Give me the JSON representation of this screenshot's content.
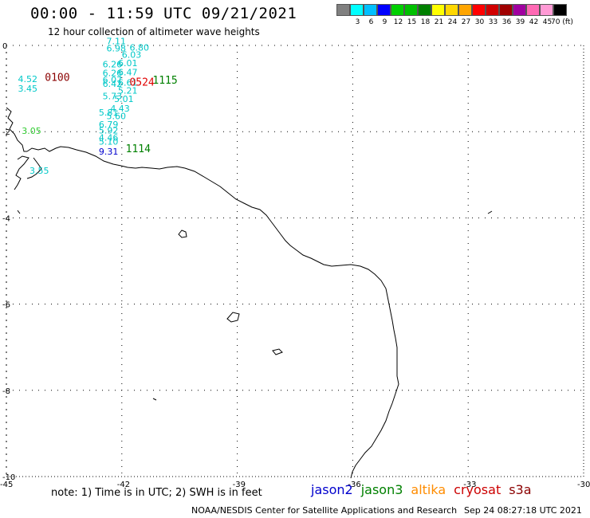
{
  "header": {
    "title": "00:00 - 11:59 UTC 09/21/2021",
    "subtitle": "12 hour collection of altimeter wave heights"
  },
  "colorbar": {
    "colors": [
      "#808080",
      "#00ffff",
      "#00bfff",
      "#0000ff",
      "#00d000",
      "#00c000",
      "#008000",
      "#ffff00",
      "#ffd700",
      "#ffa500",
      "#ff0000",
      "#d00000",
      "#a00000",
      "#a000a0",
      "#ff69b4",
      "#ff9ad5",
      "#000000"
    ],
    "labels": [
      "",
      "3",
      "6",
      "9",
      "12",
      "15",
      "18",
      "21",
      "24",
      "27",
      "30",
      "33",
      "36",
      "39",
      "42",
      "45",
      "70 (ft)"
    ]
  },
  "map": {
    "lon_ticks": [
      "-45",
      "-42",
      "-39",
      "-36",
      "-33",
      "-30"
    ],
    "lat_ticks": [
      "0",
      "-2",
      "-4",
      "-6",
      "-8",
      "-10"
    ],
    "lon_range": [
      -45,
      -30
    ],
    "lat_range": [
      -10,
      0
    ],
    "pass_times": [
      {
        "text": "0100",
        "color": "#8b0000",
        "lon": -44.0,
        "lat": -0.82
      },
      {
        "text": "0524",
        "color": "#e00000",
        "lon": -41.8,
        "lat": -0.93
      },
      {
        "text": "1115",
        "color": "#008000",
        "lon": -41.2,
        "lat": -0.89
      },
      {
        "text": "1114",
        "color": "#008000",
        "lon": -41.9,
        "lat": -2.48
      }
    ],
    "wave_heights": [
      {
        "text": "7.11",
        "color": "#00c8c8",
        "lon": -42.4,
        "lat": 0.03
      },
      {
        "text": "6.98",
        "color": "#00c8c8",
        "lon": -42.4,
        "lat": -0.14
      },
      {
        "text": "6.80",
        "color": "#00c8c8",
        "lon": -41.8,
        "lat": -0.12
      },
      {
        "text": "6.03",
        "color": "#00c8c8",
        "lon": -42.0,
        "lat": -0.29
      },
      {
        "text": "6.26",
        "color": "#00c8c8",
        "lon": -42.5,
        "lat": -0.51
      },
      {
        "text": "6.01",
        "color": "#00c8c8",
        "lon": -42.1,
        "lat": -0.48
      },
      {
        "text": "6.26",
        "color": "#00c8c8",
        "lon": -42.5,
        "lat": -0.71
      },
      {
        "text": "6.47",
        "color": "#00c8c8",
        "lon": -42.1,
        "lat": -0.69
      },
      {
        "text": "6.07",
        "color": "#00c8c8",
        "lon": -42.5,
        "lat": -0.87
      },
      {
        "text": "6.42",
        "color": "#00c8c8",
        "lon": -42.5,
        "lat": -0.96
      },
      {
        "text": "6.61",
        "color": "#00c8c8",
        "lon": -42.1,
        "lat": -0.93
      },
      {
        "text": "4.52",
        "color": "#00c8c8",
        "lon": -44.7,
        "lat": -0.85
      },
      {
        "text": "3.45",
        "color": "#00c8c8",
        "lon": -44.7,
        "lat": -1.07
      },
      {
        "text": "5.21",
        "color": "#00c8c8",
        "lon": -42.1,
        "lat": -1.12
      },
      {
        "text": "5.73",
        "color": "#00c8c8",
        "lon": -42.5,
        "lat": -1.25
      },
      {
        "text": "5.01",
        "color": "#00c8c8",
        "lon": -42.2,
        "lat": -1.31
      },
      {
        "text": "4.43",
        "color": "#00c8c8",
        "lon": -42.3,
        "lat": -1.53
      },
      {
        "text": "5.81",
        "color": "#00c8c8",
        "lon": -42.6,
        "lat": -1.63
      },
      {
        "text": "5.60",
        "color": "#00c8c8",
        "lon": -42.4,
        "lat": -1.71
      },
      {
        "text": "6.79",
        "color": "#00c8c8",
        "lon": -42.6,
        "lat": -1.9
      },
      {
        "text": "5.92",
        "color": "#00c8c8",
        "lon": -42.6,
        "lat": -2.04
      },
      {
        "text": "4.46",
        "color": "#00c8c8",
        "lon": -42.6,
        "lat": -2.21
      },
      {
        "text": "5.10",
        "color": "#00c8c8",
        "lon": -42.6,
        "lat": -2.3
      },
      {
        "text": "3.05",
        "color": "#33cc33",
        "lon": -44.6,
        "lat": -2.05
      },
      {
        "text": "9.31",
        "color": "#0000cd",
        "lon": -42.6,
        "lat": -2.53
      },
      {
        "text": "3.55",
        "color": "#00c8c8",
        "lon": -44.4,
        "lat": -2.98
      }
    ]
  },
  "note": "note: 1) Time is in UTC; 2) SWH is in feet",
  "satellites": [
    {
      "name": "jason2",
      "color": "#0000cd"
    },
    {
      "name": "jason3",
      "color": "#008000"
    },
    {
      "name": "altika",
      "color": "#ff8c00"
    },
    {
      "name": "cryosat",
      "color": "#cc0000"
    },
    {
      "name": "s3a",
      "color": "#8b0000"
    }
  ],
  "credit": "NOAA/NESDIS Center for Satellite Applications and Research",
  "timestamp": "Sep 24 08:27:18 UTC 2021"
}
